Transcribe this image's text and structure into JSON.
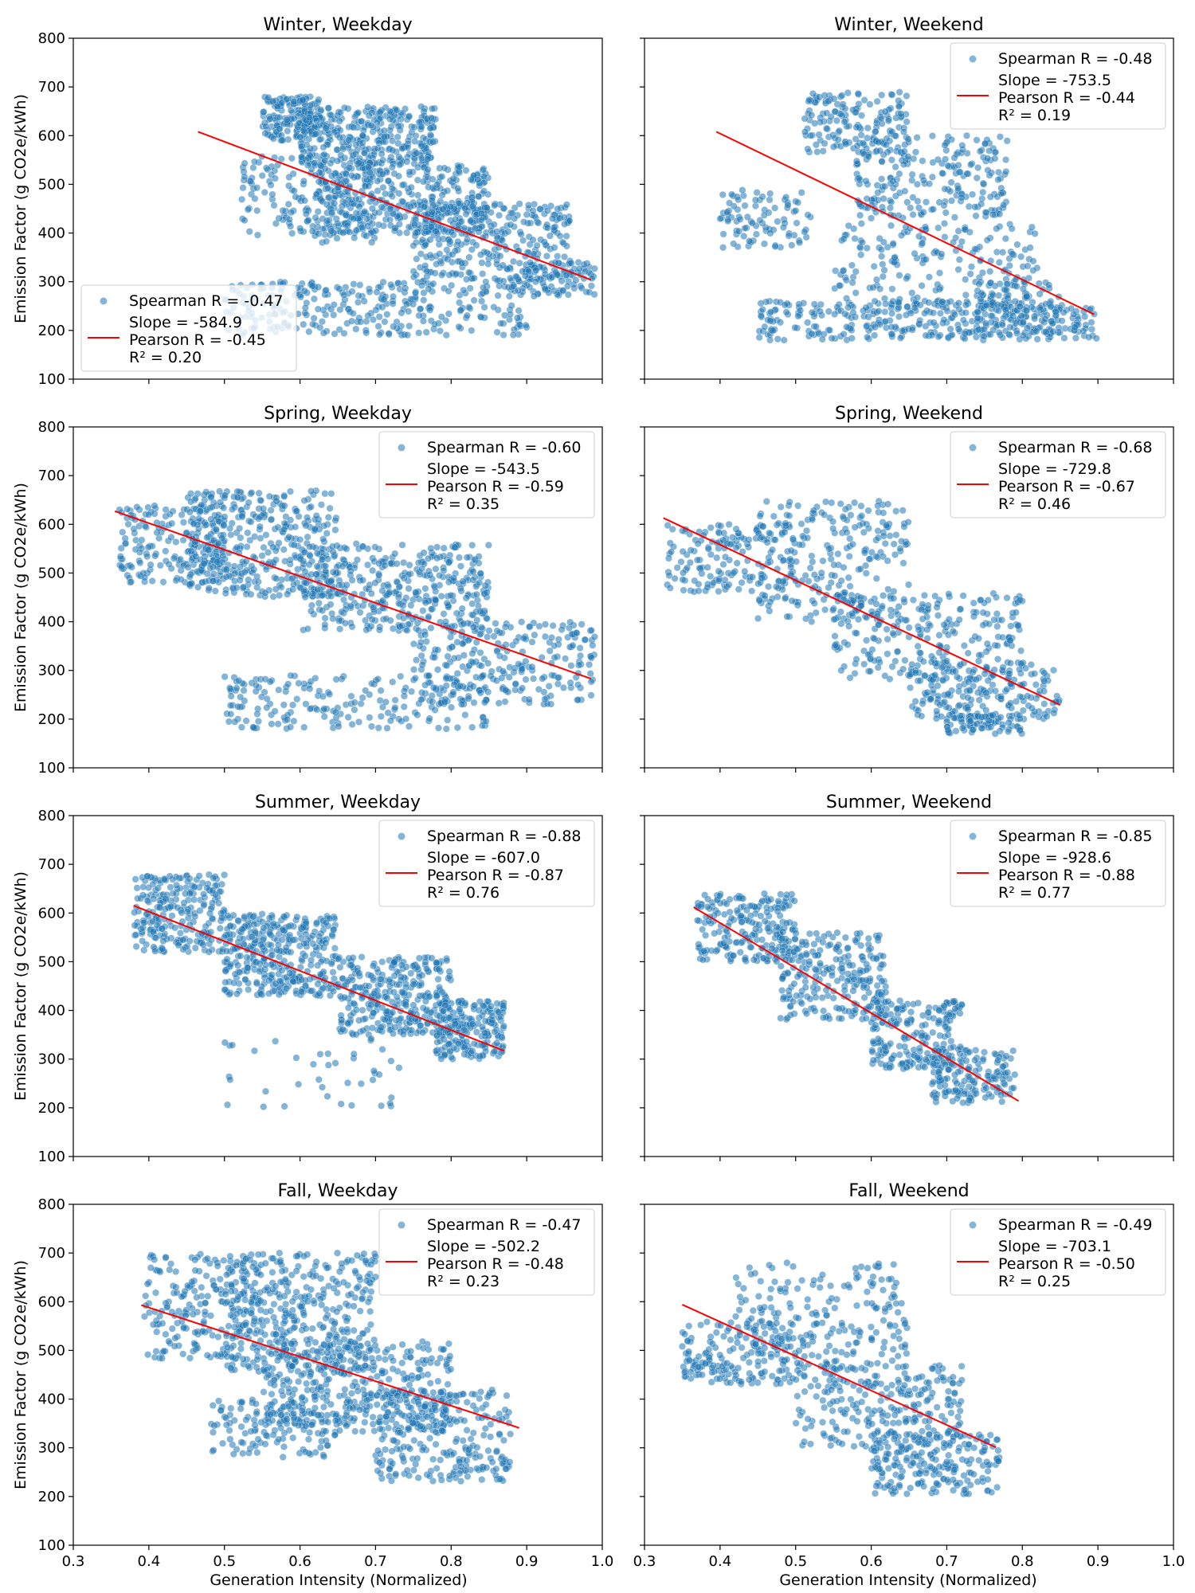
{
  "figure": {
    "xlabel": "Generation Intensity (Normalized)",
    "ylabel": "Emission Factor (g CO2e/kWh)"
  },
  "colors": {
    "points": "#1f77b4",
    "fit_line": "#ff0000",
    "axes": "#000000",
    "legend_border": "#cccccc"
  },
  "axes": {
    "xlim": [
      0.3,
      1.0
    ],
    "ylim": [
      100,
      800
    ],
    "xticks": [
      0.3,
      0.4,
      0.5,
      0.6,
      0.7,
      0.8,
      0.9,
      1.0
    ],
    "xtick_labels": [
      "0.3",
      "0.4",
      "0.5",
      "0.6",
      "0.7",
      "0.8",
      "0.9",
      "1.0"
    ],
    "yticks": [
      100,
      200,
      300,
      400,
      500,
      600,
      700,
      800
    ],
    "ytick_labels": [
      "100",
      "200",
      "300",
      "400",
      "500",
      "600",
      "700",
      "800"
    ],
    "grid": false
  },
  "chart_data": [
    {
      "type": "scatter",
      "title": "Winter, Weekday",
      "legend": {
        "location": "lower-left",
        "scatter_label": "Spearman R = -0.47",
        "line_lines": [
          "Slope = -584.9",
          "Pearson R = -0.45",
          "R² = 0.20"
        ]
      },
      "fit_line": {
        "x": [
          0.465,
          0.985
        ],
        "y": [
          608,
          304
        ]
      },
      "clusters": [
        {
          "x": [
            0.55,
            0.63
          ],
          "y": [
            590,
            680
          ],
          "n": 160
        },
        {
          "x": [
            0.6,
            0.78
          ],
          "y": [
            540,
            660
          ],
          "n": 320
        },
        {
          "x": [
            0.62,
            0.85
          ],
          "y": [
            400,
            540
          ],
          "n": 380
        },
        {
          "x": [
            0.75,
            0.96
          ],
          "y": [
            300,
            460
          ],
          "n": 320
        },
        {
          "x": [
            0.52,
            0.7
          ],
          "y": [
            380,
            560
          ],
          "n": 180
        },
        {
          "x": [
            0.5,
            0.9
          ],
          "y": [
            190,
            300
          ],
          "n": 300
        },
        {
          "x": [
            0.88,
            0.99
          ],
          "y": [
            270,
            340
          ],
          "n": 90
        }
      ]
    },
    {
      "type": "scatter",
      "title": "Winter, Weekend",
      "legend": {
        "location": "upper-right",
        "scatter_label": "Spearman R = -0.48",
        "line_lines": [
          "Slope = -753.5",
          "Pearson R = -0.44",
          "R² = 0.19"
        ]
      },
      "fit_line": {
        "x": [
          0.395,
          0.895
        ],
        "y": [
          608,
          233
        ]
      },
      "clusters": [
        {
          "x": [
            0.51,
            0.65
          ],
          "y": [
            560,
            690
          ],
          "n": 160
        },
        {
          "x": [
            0.58,
            0.78
          ],
          "y": [
            430,
            600
          ],
          "n": 220
        },
        {
          "x": [
            0.4,
            0.52
          ],
          "y": [
            370,
            490
          ],
          "n": 90
        },
        {
          "x": [
            0.55,
            0.82
          ],
          "y": [
            240,
            420
          ],
          "n": 200
        },
        {
          "x": [
            0.45,
            0.9
          ],
          "y": [
            180,
            260
          ],
          "n": 320
        },
        {
          "x": [
            0.74,
            0.85
          ],
          "y": [
            190,
            300
          ],
          "n": 120
        }
      ]
    },
    {
      "type": "scatter",
      "title": "Spring, Weekday",
      "legend": {
        "location": "upper-right",
        "scatter_label": "Spearman R = -0.60",
        "line_lines": [
          "Slope = -543.5",
          "Pearson R = -0.59",
          "R² = 0.35"
        ]
      },
      "fit_line": {
        "x": [
          0.355,
          0.985
        ],
        "y": [
          627,
          283
        ]
      },
      "clusters": [
        {
          "x": [
            0.36,
            0.5
          ],
          "y": [
            480,
            640
          ],
          "n": 180
        },
        {
          "x": [
            0.45,
            0.65
          ],
          "y": [
            450,
            670
          ],
          "n": 380
        },
        {
          "x": [
            0.6,
            0.85
          ],
          "y": [
            380,
            560
          ],
          "n": 380
        },
        {
          "x": [
            0.75,
            0.99
          ],
          "y": [
            230,
            400
          ],
          "n": 260
        },
        {
          "x": [
            0.5,
            0.85
          ],
          "y": [
            180,
            290
          ],
          "n": 200
        }
      ]
    },
    {
      "type": "scatter",
      "title": "Spring, Weekend",
      "legend": {
        "location": "upper-right",
        "scatter_label": "Spearman R = -0.68",
        "line_lines": [
          "Slope = -729.8",
          "Pearson R = -0.67",
          "R² = 0.46"
        ]
      },
      "fit_line": {
        "x": [
          0.325,
          0.85
        ],
        "y": [
          613,
          229
        ]
      },
      "clusters": [
        {
          "x": [
            0.33,
            0.5
          ],
          "y": [
            460,
            600
          ],
          "n": 160
        },
        {
          "x": [
            0.45,
            0.65
          ],
          "y": [
            400,
            650
          ],
          "n": 240
        },
        {
          "x": [
            0.55,
            0.8
          ],
          "y": [
            280,
            470
          ],
          "n": 240
        },
        {
          "x": [
            0.65,
            0.85
          ],
          "y": [
            200,
            320
          ],
          "n": 200
        },
        {
          "x": [
            0.7,
            0.8
          ],
          "y": [
            170,
            210
          ],
          "n": 80
        }
      ]
    },
    {
      "type": "scatter",
      "title": "Summer, Weekday",
      "legend": {
        "location": "upper-right",
        "scatter_label": "Spearman R = -0.88",
        "line_lines": [
          "Slope = -607.0",
          "Pearson R = -0.87",
          "R² = 0.76"
        ]
      },
      "fit_line": {
        "x": [
          0.38,
          0.87
        ],
        "y": [
          615,
          317
        ]
      },
      "clusters": [
        {
          "x": [
            0.38,
            0.5
          ],
          "y": [
            520,
            680
          ],
          "n": 240
        },
        {
          "x": [
            0.5,
            0.65
          ],
          "y": [
            430,
            600
          ],
          "n": 360
        },
        {
          "x": [
            0.65,
            0.8
          ],
          "y": [
            350,
            510
          ],
          "n": 320
        },
        {
          "x": [
            0.78,
            0.87
          ],
          "y": [
            300,
            420
          ],
          "n": 200
        },
        {
          "x": [
            0.5,
            0.74
          ],
          "y": [
            200,
            350
          ],
          "n": 40
        }
      ]
    },
    {
      "type": "scatter",
      "title": "Summer, Weekend",
      "legend": {
        "location": "upper-right",
        "scatter_label": "Spearman R = -0.85",
        "line_lines": [
          "Slope = -928.6",
          "Pearson R = -0.88",
          "R² = 0.77"
        ]
      },
      "fit_line": {
        "x": [
          0.365,
          0.795
        ],
        "y": [
          612,
          214
        ]
      },
      "clusters": [
        {
          "x": [
            0.37,
            0.5
          ],
          "y": [
            500,
            640
          ],
          "n": 220
        },
        {
          "x": [
            0.48,
            0.62
          ],
          "y": [
            380,
            560
          ],
          "n": 240
        },
        {
          "x": [
            0.6,
            0.72
          ],
          "y": [
            280,
            420
          ],
          "n": 200
        },
        {
          "x": [
            0.68,
            0.79
          ],
          "y": [
            210,
            320
          ],
          "n": 160
        }
      ]
    },
    {
      "type": "scatter",
      "title": "Fall, Weekday",
      "legend": {
        "location": "upper-right",
        "scatter_label": "Spearman R = -0.47",
        "line_lines": [
          "Slope = -502.2",
          "Pearson R = -0.48",
          "R² = 0.23"
        ]
      },
      "fit_line": {
        "x": [
          0.39,
          0.89
        ],
        "y": [
          593,
          341
        ]
      },
      "clusters": [
        {
          "x": [
            0.39,
            0.55
          ],
          "y": [
            480,
            700
          ],
          "n": 200
        },
        {
          "x": [
            0.5,
            0.7
          ],
          "y": [
            450,
            700
          ],
          "n": 380
        },
        {
          "x": [
            0.55,
            0.8
          ],
          "y": [
            330,
            520
          ],
          "n": 380
        },
        {
          "x": [
            0.7,
            0.88
          ],
          "y": [
            230,
            420
          ],
          "n": 260
        },
        {
          "x": [
            0.48,
            0.65
          ],
          "y": [
            280,
            400
          ],
          "n": 120
        }
      ]
    },
    {
      "type": "scatter",
      "title": "Fall, Weekend",
      "legend": {
        "location": "upper-right",
        "scatter_label": "Spearman R = -0.49",
        "line_lines": [
          "Slope = -703.1",
          "Pearson R = -0.50",
          "R² = 0.25"
        ]
      },
      "fit_line": {
        "x": [
          0.35,
          0.765
        ],
        "y": [
          594,
          301
        ]
      },
      "clusters": [
        {
          "x": [
            0.35,
            0.5
          ],
          "y": [
            430,
            560
          ],
          "n": 160
        },
        {
          "x": [
            0.42,
            0.65
          ],
          "y": [
            460,
            680
          ],
          "n": 220
        },
        {
          "x": [
            0.5,
            0.72
          ],
          "y": [
            300,
            470
          ],
          "n": 240
        },
        {
          "x": [
            0.6,
            0.77
          ],
          "y": [
            205,
            330
          ],
          "n": 220
        }
      ]
    }
  ]
}
